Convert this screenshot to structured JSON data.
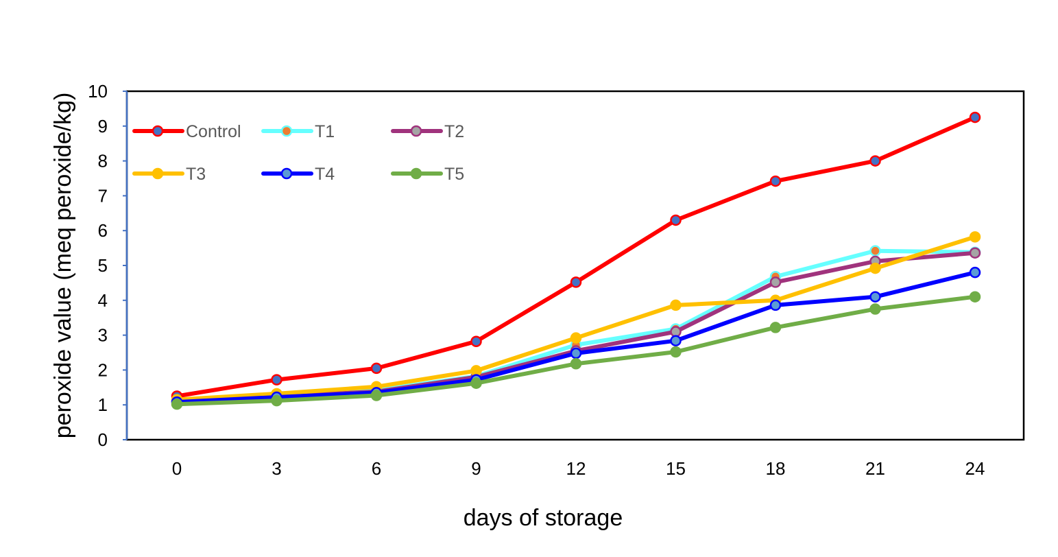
{
  "chart_data": {
    "type": "line",
    "title": "",
    "xlabel": "days of storage",
    "ylabel": "peroxide value (meq peroxide/kg)",
    "x": [
      0,
      3,
      6,
      9,
      12,
      15,
      18,
      21,
      24
    ],
    "x_tick_labels": [
      "0",
      "3",
      "6",
      "9",
      "12",
      "15",
      "18",
      "21",
      "24"
    ],
    "y_tick_labels": [
      "0",
      "1",
      "2",
      "3",
      "4",
      "5",
      "6",
      "7",
      "8",
      "9",
      "10"
    ],
    "ylim": [
      0,
      10
    ],
    "grid": false,
    "legend_position": "top-left, inside plot",
    "series": [
      {
        "name": "Control",
        "line_color": "#ff0000",
        "marker_fill": "#4472c4",
        "marker_edge": "#ff0000",
        "values": [
          1.25,
          1.72,
          2.05,
          2.82,
          4.52,
          6.3,
          7.42,
          8.0,
          9.25
        ]
      },
      {
        "name": "T1",
        "line_color": "#66ffff",
        "marker_fill": "#ed7d31",
        "marker_edge": "#66ffff",
        "values": [
          1.12,
          1.28,
          1.42,
          1.82,
          2.72,
          3.18,
          4.68,
          5.42,
          5.38
        ]
      },
      {
        "name": "T2",
        "line_color": "#a0337d",
        "marker_fill": "#a5a5a5",
        "marker_edge": "#a0337d",
        "values": [
          1.1,
          1.25,
          1.38,
          1.8,
          2.55,
          3.1,
          4.52,
          5.12,
          5.36
        ]
      },
      {
        "name": "T3",
        "line_color": "#ffc000",
        "marker_fill": "#ffc000",
        "marker_edge": "#ffc000",
        "values": [
          1.15,
          1.32,
          1.52,
          1.98,
          2.92,
          3.86,
          4.0,
          4.92,
          5.82
        ]
      },
      {
        "name": "T4",
        "line_color": "#0000ff",
        "marker_fill": "#5b9bd5",
        "marker_edge": "#0000ff",
        "values": [
          1.08,
          1.22,
          1.35,
          1.72,
          2.48,
          2.84,
          3.86,
          4.1,
          4.8
        ]
      },
      {
        "name": "T5",
        "line_color": "#70ad47",
        "marker_fill": "#70ad47",
        "marker_edge": "#70ad47",
        "values": [
          1.02,
          1.12,
          1.27,
          1.62,
          2.18,
          2.52,
          3.22,
          3.75,
          4.1
        ]
      }
    ]
  }
}
